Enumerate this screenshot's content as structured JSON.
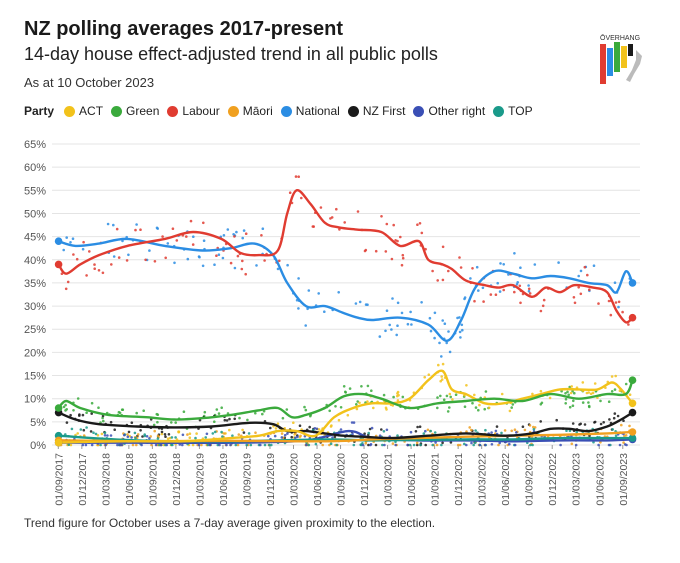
{
  "header": {
    "title": "NZ polling averages 2017-present",
    "subtitle": "14-day house effect-adjusted trend in all public polls",
    "as_at": "As at 10 October 2023"
  },
  "legend": {
    "title": "Party",
    "items": [
      {
        "label": "ACT",
        "color": "#f2c21b"
      },
      {
        "label": "Green",
        "color": "#3aaa3c"
      },
      {
        "label": "Labour",
        "color": "#e03c31"
      },
      {
        "label": "Māori",
        "color": "#f0a020"
      },
      {
        "label": "National",
        "color": "#2b8de3"
      },
      {
        "label": "NZ First",
        "color": "#1a1a1a"
      },
      {
        "label": "Other right",
        "color": "#3a4fb5"
      },
      {
        "label": "TOP",
        "color": "#1a9a8a"
      }
    ]
  },
  "logo": {
    "text": "ŌVERHANG",
    "colors": [
      "#e03c31",
      "#2b8de3",
      "#3aaa3c",
      "#f2c21b",
      "#1a1a1a"
    ]
  },
  "footnote": "Trend figure for October uses a 7-day average given proximity to the election.",
  "chart_data": {
    "type": "line",
    "title": "NZ polling averages 2017-present",
    "ylabel": "",
    "xlabel": "",
    "ylim": [
      0,
      65
    ],
    "xlim": [
      2017.6,
      2023.85
    ],
    "yticks": [
      "0%",
      "5%",
      "10%",
      "15%",
      "20%",
      "25%",
      "30%",
      "35%",
      "40%",
      "45%",
      "50%",
      "55%",
      "60%",
      "65%"
    ],
    "xticks": [
      "01/09/2017",
      "01/12/2017",
      "01/03/2018",
      "01/06/2018",
      "01/09/2018",
      "01/12/2018",
      "01/03/2019",
      "01/06/2019",
      "01/09/2019",
      "01/12/2019",
      "01/03/2020",
      "01/06/2020",
      "01/09/2020",
      "01/12/2020",
      "01/03/2021",
      "01/06/2021",
      "01/09/2021",
      "01/12/2021",
      "01/03/2022",
      "01/06/2022",
      "01/09/2022",
      "01/12/2022",
      "01/03/2023",
      "01/06/2023",
      "01/09/2023"
    ],
    "series": [
      {
        "name": "National",
        "color": "#2b8de3",
        "x": [
          2017.67,
          2017.85,
          2018.1,
          2018.4,
          2018.8,
          2019.2,
          2019.5,
          2019.75,
          2019.95,
          2020.1,
          2020.3,
          2020.5,
          2020.7,
          2020.85,
          2021.0,
          2021.3,
          2021.6,
          2021.8,
          2021.95,
          2022.1,
          2022.3,
          2022.5,
          2022.7,
          2022.9,
          2023.1,
          2023.3,
          2023.5,
          2023.6,
          2023.7,
          2023.77
        ],
        "values": [
          44,
          43,
          43.5,
          44.5,
          43,
          42,
          42.5,
          43.5,
          41,
          35,
          30,
          30,
          28.5,
          27.5,
          27,
          27.5,
          26,
          22.5,
          27,
          34,
          37.5,
          37,
          36,
          36.5,
          36,
          35,
          34.5,
          33,
          37.5,
          35
        ]
      },
      {
        "name": "Labour",
        "color": "#e03c31",
        "x": [
          2017.67,
          2017.75,
          2017.9,
          2018.1,
          2018.4,
          2018.8,
          2019.1,
          2019.4,
          2019.6,
          2019.8,
          2020.0,
          2020.1,
          2020.2,
          2020.35,
          2020.5,
          2020.65,
          2020.85,
          2021.1,
          2021.3,
          2021.5,
          2021.6,
          2021.75,
          2021.85,
          2022.0,
          2022.2,
          2022.35,
          2022.5,
          2022.7,
          2022.85,
          2023.0,
          2023.15,
          2023.35,
          2023.5,
          2023.6,
          2023.7,
          2023.77
        ],
        "values": [
          39,
          37,
          39,
          41,
          43,
          44.5,
          46,
          44.5,
          41.5,
          41,
          42,
          50,
          55,
          52,
          48,
          47,
          46.5,
          46,
          43,
          44,
          40,
          39,
          38,
          35.5,
          34.5,
          34,
          34.5,
          32,
          34,
          33,
          34.5,
          34,
          33,
          29,
          26.5,
          27.5
        ]
      },
      {
        "name": "Green",
        "color": "#3aaa3c",
        "x": [
          2017.67,
          2017.75,
          2017.9,
          2018.2,
          2018.6,
          2018.9,
          2019.2,
          2019.5,
          2019.8,
          2020.0,
          2020.15,
          2020.3,
          2020.5,
          2020.7,
          2020.9,
          2021.1,
          2021.4,
          2021.7,
          2022.0,
          2022.3,
          2022.6,
          2022.9,
          2023.2,
          2023.5,
          2023.7,
          2023.77
        ],
        "values": [
          8,
          9.5,
          8,
          6.5,
          6,
          5.5,
          5.8,
          6.5,
          7.5,
          8,
          6,
          6.5,
          8,
          10.5,
          11,
          10,
          8,
          9,
          9.5,
          10,
          9.5,
          11,
          10,
          11,
          11,
          14
        ]
      },
      {
        "name": "ACT",
        "color": "#f2c21b",
        "x": [
          2017.67,
          2018.0,
          2018.5,
          2019.0,
          2019.5,
          2019.8,
          2020.0,
          2020.2,
          2020.4,
          2020.6,
          2020.8,
          2021.0,
          2021.2,
          2021.4,
          2021.6,
          2021.75,
          2021.85,
          2022.0,
          2022.2,
          2022.4,
          2022.6,
          2022.8,
          2023.0,
          2023.2,
          2023.4,
          2023.55,
          2023.65,
          2023.77
        ],
        "values": [
          0.5,
          0.7,
          0.8,
          0.8,
          1.5,
          2,
          3,
          3,
          2,
          6,
          8,
          9,
          9,
          10,
          14,
          16,
          12,
          11,
          9,
          9,
          10,
          11,
          12,
          12,
          12,
          13.5,
          12,
          9
        ]
      },
      {
        "name": "NZ First",
        "color": "#1a1a1a",
        "x": [
          2017.67,
          2017.85,
          2018.1,
          2018.5,
          2018.9,
          2019.3,
          2019.7,
          2019.95,
          2020.1,
          2020.3,
          2020.5,
          2020.7,
          2020.9,
          2021.2,
          2021.6,
          2022.0,
          2022.4,
          2022.7,
          2022.9,
          2023.1,
          2023.3,
          2023.5,
          2023.65,
          2023.77
        ],
        "values": [
          7,
          5.5,
          4.5,
          4,
          3.8,
          4,
          4.8,
          4.5,
          3,
          3,
          2.5,
          2,
          1.8,
          1.5,
          2,
          2.5,
          2,
          2.5,
          3.5,
          3.5,
          3,
          4,
          5.5,
          7
        ]
      },
      {
        "name": "Māori",
        "color": "#f0a020",
        "x": [
          2017.67,
          2018.5,
          2019.5,
          2020.5,
          2021.0,
          2021.5,
          2022.0,
          2022.5,
          2023.0,
          2023.5,
          2023.77
        ],
        "values": [
          1,
          0.8,
          0.9,
          0.8,
          1.2,
          1.5,
          1.8,
          2,
          2.2,
          2.5,
          2.8
        ]
      },
      {
        "name": "TOP",
        "color": "#1a9a8a",
        "x": [
          2017.67,
          2018.5,
          2019.5,
          2020.5,
          2021.0,
          2022.0,
          2022.5,
          2023.0,
          2023.5,
          2023.77
        ],
        "values": [
          2,
          1,
          0.8,
          1.2,
          1,
          1.2,
          1.2,
          1.5,
          1.5,
          1.5
        ]
      },
      {
        "name": "Other right",
        "color": "#3a4fb5",
        "x": [
          2017.67,
          2018.5,
          2019.5,
          2020.3,
          2020.75,
          2021.0,
          2021.5,
          2022.0,
          2022.5,
          2023.0,
          2023.5,
          2023.77
        ],
        "values": [
          0.5,
          0.5,
          0.5,
          1,
          3,
          1.5,
          1,
          1,
          0.8,
          1,
          1,
          1.2
        ]
      }
    ]
  }
}
